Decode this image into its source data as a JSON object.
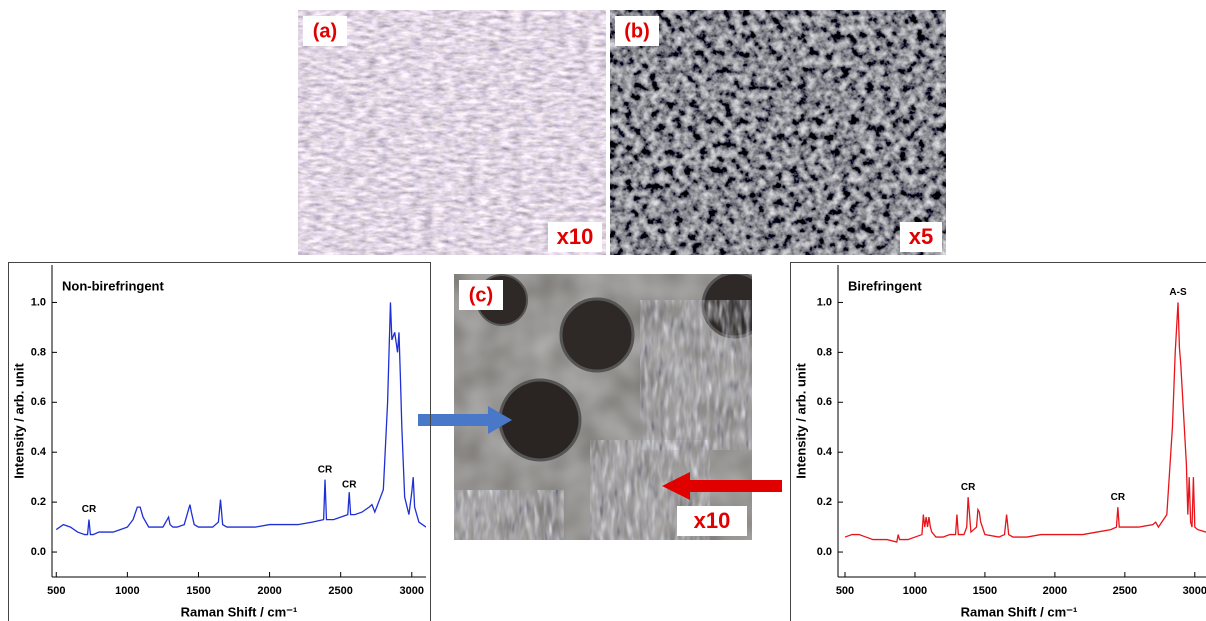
{
  "panels": [
    {
      "label": "(a)",
      "magnification": "x10"
    },
    {
      "label": "(b)",
      "magnification": "x5"
    },
    {
      "label": "(c)",
      "magnification": "x10"
    }
  ],
  "chart_data": [
    {
      "type": "line",
      "title": "Non-birefringent",
      "xlabel": "Raman Shift / cm⁻¹",
      "ylabel": "Intensity / arb. unit",
      "xlim": [
        470,
        3100
      ],
      "ylim": [
        -0.1,
        1.15
      ],
      "xticks": [
        500,
        1000,
        1500,
        2000,
        2500,
        3000
      ],
      "yticks": [
        {
          "value": 0,
          "label": "0.0"
        },
        0.2,
        0.4,
        0.6,
        0.8,
        {
          "value": 1,
          "label": "1.0"
        }
      ],
      "x": [
        500,
        550,
        600,
        650,
        700,
        720,
        730,
        740,
        760,
        800,
        850,
        900,
        950,
        1000,
        1040,
        1070,
        1090,
        1110,
        1150,
        1200,
        1250,
        1270,
        1290,
        1300,
        1320,
        1350,
        1400,
        1430,
        1440,
        1450,
        1470,
        1500,
        1600,
        1640,
        1655,
        1670,
        1700,
        1800,
        1900,
        2000,
        2100,
        2200,
        2300,
        2380,
        2390,
        2400,
        2450,
        2500,
        2550,
        2560,
        2570,
        2600,
        2650,
        2700,
        2720,
        2740,
        2800,
        2830,
        2850,
        2860,
        2880,
        2900,
        2910,
        2920,
        2930,
        2950,
        2980,
        3000,
        3010,
        3020,
        3050,
        3100
      ],
      "series": [
        {
          "name": "Non-birefringent",
          "color": "#1f2fd6",
          "values": [
            0.09,
            0.11,
            0.1,
            0.08,
            0.07,
            0.07,
            0.13,
            0.07,
            0.07,
            0.08,
            0.08,
            0.08,
            0.09,
            0.1,
            0.13,
            0.18,
            0.18,
            0.14,
            0.1,
            0.1,
            0.1,
            0.12,
            0.14,
            0.11,
            0.1,
            0.1,
            0.11,
            0.17,
            0.19,
            0.16,
            0.11,
            0.1,
            0.1,
            0.12,
            0.21,
            0.11,
            0.1,
            0.1,
            0.1,
            0.11,
            0.11,
            0.11,
            0.12,
            0.13,
            0.29,
            0.13,
            0.13,
            0.14,
            0.15,
            0.24,
            0.15,
            0.15,
            0.16,
            0.18,
            0.19,
            0.16,
            0.25,
            0.6,
            1.0,
            0.85,
            0.88,
            0.8,
            0.88,
            0.7,
            0.5,
            0.22,
            0.15,
            0.24,
            0.3,
            0.18,
            0.12,
            0.1
          ]
        }
      ],
      "annotations": [
        {
          "text": "CR",
          "x": 730,
          "y": 0.17
        },
        {
          "text": "CR",
          "x": 2390,
          "y": 0.33
        },
        {
          "text": "CR",
          "x": 2560,
          "y": 0.27
        }
      ]
    },
    {
      "type": "line",
      "title": "Birefringent",
      "xlabel": "Raman Shift / cm⁻¹",
      "ylabel": "Intensity / arb. unit",
      "xlim": [
        450,
        3080
      ],
      "ylim": [
        -0.1,
        1.15
      ],
      "xticks": [
        500,
        1000,
        1500,
        2000,
        2500,
        3000
      ],
      "yticks": [
        {
          "value": 0,
          "label": "0.0"
        },
        0.2,
        0.4,
        0.6,
        0.8,
        {
          "value": 1,
          "label": "1.0"
        }
      ],
      "x": [
        500,
        550,
        600,
        650,
        700,
        800,
        870,
        880,
        890,
        900,
        950,
        1000,
        1050,
        1060,
        1070,
        1080,
        1090,
        1100,
        1110,
        1120,
        1150,
        1200,
        1250,
        1290,
        1300,
        1310,
        1350,
        1370,
        1380,
        1400,
        1440,
        1450,
        1460,
        1470,
        1500,
        1600,
        1640,
        1655,
        1670,
        1700,
        1800,
        1900,
        2000,
        2100,
        2200,
        2300,
        2400,
        2440,
        2450,
        2460,
        2500,
        2600,
        2700,
        2720,
        2740,
        2800,
        2840,
        2860,
        2880,
        2890,
        2900,
        2920,
        2940,
        2950,
        2960,
        2970,
        2980,
        2990,
        3000,
        3020,
        3080
      ],
      "series": [
        {
          "name": "Birefringent",
          "color": "#e8141a",
          "values": [
            0.06,
            0.07,
            0.07,
            0.06,
            0.05,
            0.05,
            0.04,
            0.07,
            0.05,
            0.05,
            0.05,
            0.06,
            0.07,
            0.15,
            0.1,
            0.14,
            0.1,
            0.14,
            0.1,
            0.08,
            0.06,
            0.06,
            0.07,
            0.07,
            0.15,
            0.07,
            0.07,
            0.1,
            0.22,
            0.08,
            0.1,
            0.17,
            0.16,
            0.12,
            0.07,
            0.06,
            0.07,
            0.15,
            0.07,
            0.06,
            0.06,
            0.07,
            0.07,
            0.07,
            0.07,
            0.08,
            0.09,
            0.1,
            0.18,
            0.1,
            0.1,
            0.1,
            0.11,
            0.12,
            0.1,
            0.15,
            0.5,
            0.8,
            1.0,
            0.82,
            0.75,
            0.55,
            0.35,
            0.15,
            0.3,
            0.12,
            0.1,
            0.3,
            0.1,
            0.09,
            0.08
          ]
        }
      ],
      "annotations": [
        {
          "text": "CR",
          "x": 1380,
          "y": 0.26
        },
        {
          "text": "CR",
          "x": 2450,
          "y": 0.22
        },
        {
          "text": "A-S",
          "x": 2880,
          "y": 1.04
        }
      ]
    }
  ]
}
